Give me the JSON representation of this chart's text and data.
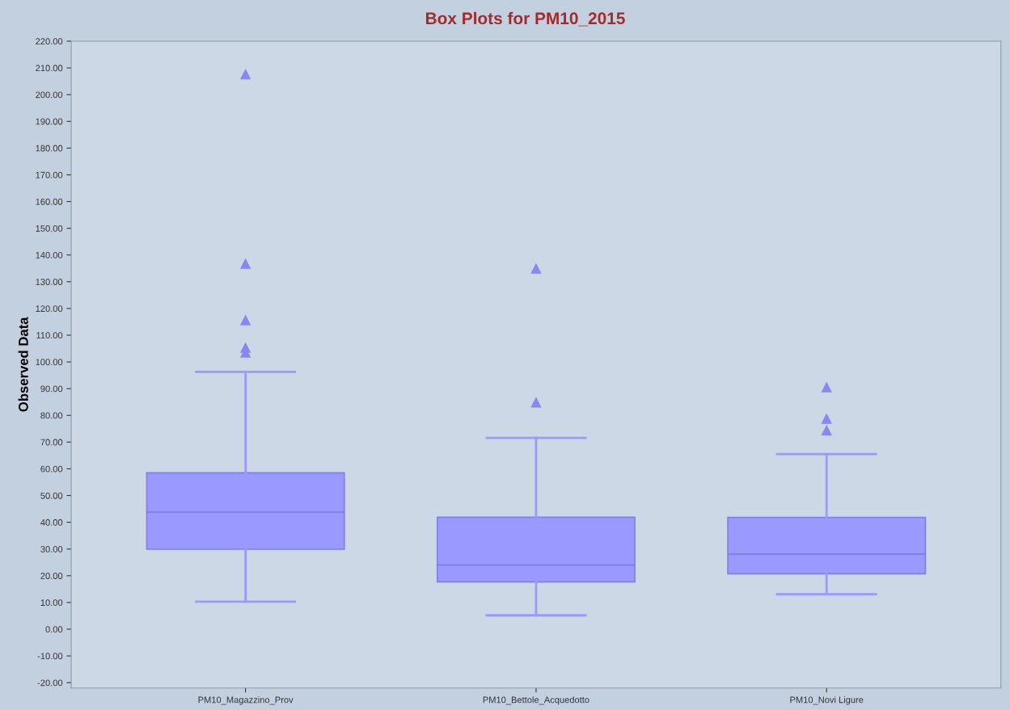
{
  "chart_data": {
    "type": "box",
    "title": "Box Plots for PM10_2015",
    "ylabel": "Observed Data",
    "categories": [
      "PM10_Magazzino_Prov",
      "PM10_Bettole_Acquedotto",
      "PM10_Novi Ligure"
    ],
    "series": [
      {
        "color": "#9999ff",
        "boxes": [
          {
            "low": 10.3,
            "q1": 29.9,
            "median": 43.8,
            "q3": 58.5,
            "high": 96.3,
            "outliers": [
              207.6,
              136.7,
              115.6,
              105.3,
              103.5
            ]
          },
          {
            "low": 5.2,
            "q1": 17.7,
            "median": 24.0,
            "q3": 41.9,
            "high": 71.6,
            "outliers": [
              134.9,
              84.8
            ]
          },
          {
            "low": 13.1,
            "q1": 20.7,
            "median": 28.1,
            "q3": 41.8,
            "high": 65.5,
            "outliers": [
              90.5,
              78.7,
              74.4
            ]
          }
        ]
      }
    ],
    "ylim": [
      -22,
      220
    ],
    "yticks": [
      {
        "value": -20,
        "label": "-20.00"
      },
      {
        "value": -10,
        "label": "-10.00"
      },
      {
        "value": 0,
        "label": "0.00"
      },
      {
        "value": 10,
        "label": "10.00"
      },
      {
        "value": 20,
        "label": "20.00"
      },
      {
        "value": 30,
        "label": "30.00"
      },
      {
        "value": 40,
        "label": "40.00"
      },
      {
        "value": 50,
        "label": "50.00"
      },
      {
        "value": 60,
        "label": "60.00"
      },
      {
        "value": 70,
        "label": "70.00"
      },
      {
        "value": 80,
        "label": "80.00"
      },
      {
        "value": 90,
        "label": "90.00"
      },
      {
        "value": 100,
        "label": "100.00"
      },
      {
        "value": 110,
        "label": "110.00"
      },
      {
        "value": 120,
        "label": "120.00"
      },
      {
        "value": 130,
        "label": "130.00"
      },
      {
        "value": 140,
        "label": "140.00"
      },
      {
        "value": 150,
        "label": "150.00"
      },
      {
        "value": 160,
        "label": "160.00"
      },
      {
        "value": 170,
        "label": "170.00"
      },
      {
        "value": 180,
        "label": "180.00"
      },
      {
        "value": 190,
        "label": "190.00"
      },
      {
        "value": 200,
        "label": "200.00"
      },
      {
        "value": 210,
        "label": "210.00"
      },
      {
        "value": 220,
        "label": "220.00"
      }
    ],
    "marker": "triangle",
    "grid": false
  }
}
